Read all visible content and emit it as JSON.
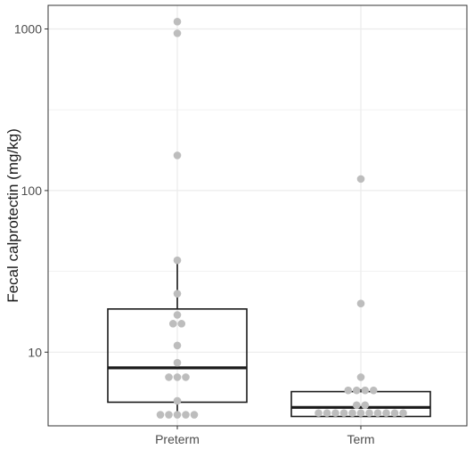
{
  "chart_data": {
    "type": "box",
    "title": "",
    "xlabel": "",
    "ylabel": "Fecal calprotectin (mg/kg)",
    "y_scale": "log10",
    "ylim": [
      3.5,
      1400
    ],
    "y_ticks": [
      10,
      100,
      1000
    ],
    "y_tick_labels": [
      "10",
      "100",
      "1000"
    ],
    "grid": true,
    "categories": [
      "Preterm",
      "Term"
    ],
    "series": [
      {
        "category": "Preterm",
        "box": {
          "q1": 4.9,
          "median": 8.0,
          "q3": 18.5,
          "whisker_low": 4.0,
          "whisker_high": 37
        },
        "points": [
          1110,
          940,
          165,
          37,
          23,
          17,
          15,
          15,
          11,
          8.6,
          7.0,
          7.0,
          7.0,
          5.0,
          4.1,
          4.1,
          4.1,
          4.1,
          4.1
        ]
      },
      {
        "category": "Term",
        "box": {
          "q1": 4.0,
          "median": 4.55,
          "q3": 5.7,
          "whisker_low": 4.0,
          "whisker_high": 5.9
        },
        "points": [
          118,
          20,
          7.0,
          5.8,
          5.8,
          5.8,
          5.8,
          4.7,
          4.7,
          4.2,
          4.2,
          4.2,
          4.2,
          4.2,
          4.2,
          4.2,
          4.2,
          4.2,
          4.2,
          4.2
        ]
      }
    ],
    "colors": {
      "points": "#bdbdbd",
      "box_line": "#1a1a1a",
      "grid": "#ebebeb",
      "panel_border": "#333333"
    }
  }
}
